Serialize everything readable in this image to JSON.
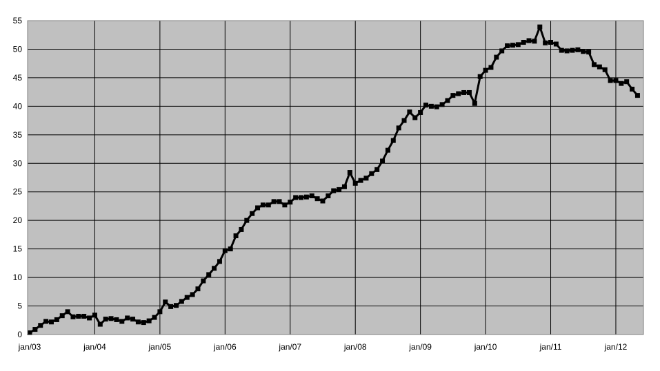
{
  "chart_data": {
    "type": "line",
    "title": "",
    "xlabel": "",
    "ylabel": "",
    "ylim": [
      0,
      55
    ],
    "yticks": [
      0,
      5,
      10,
      15,
      20,
      25,
      30,
      35,
      40,
      45,
      50,
      55
    ],
    "xtick_labels": [
      "jan/03",
      "jan/04",
      "jan/05",
      "jan/06",
      "jan/07",
      "jan/08",
      "jan/09",
      "jan/10",
      "jan/11",
      "jan/12"
    ],
    "grid": true,
    "legend": "none",
    "colors": {
      "line": "#000000",
      "plot_background": "#c0c0c0",
      "grid": "#000000"
    },
    "series": [
      {
        "x_start": "2003-01",
        "x_interval": "month",
        "values": [
          0.3,
          0.9,
          1.6,
          2.3,
          2.2,
          2.6,
          3.3,
          4.0,
          3.1,
          3.2,
          3.2,
          2.9,
          3.4,
          1.8,
          2.7,
          2.8,
          2.6,
          2.3,
          2.9,
          2.7,
          2.2,
          2.1,
          2.4,
          3.0,
          4.0,
          5.7,
          4.9,
          5.1,
          5.8,
          6.5,
          7.0,
          8.0,
          9.4,
          10.5,
          11.6,
          12.8,
          14.7,
          15.0,
          17.3,
          18.4,
          20.0,
          21.2,
          22.2,
          22.7,
          22.7,
          23.3,
          23.3,
          22.7,
          23.2,
          24.0,
          24.0,
          24.1,
          24.3,
          23.8,
          23.4,
          24.3,
          25.2,
          25.4,
          25.9,
          28.4,
          26.5,
          27.0,
          27.4,
          28.2,
          28.9,
          30.4,
          32.3,
          34.0,
          36.2,
          37.5,
          39.0,
          38.0,
          38.9,
          40.2,
          40.0,
          39.9,
          40.3,
          41.0,
          41.9,
          42.2,
          42.4,
          42.4,
          40.5,
          45.2,
          46.3,
          46.8,
          48.6,
          49.7,
          50.6,
          50.7,
          50.8,
          51.2,
          51.5,
          51.4,
          53.9,
          51.1,
          51.2,
          50.9,
          49.8,
          49.7,
          49.8,
          49.9,
          49.6,
          49.5,
          47.3,
          46.9,
          46.4,
          44.5,
          44.5,
          44.0,
          44.3,
          43.0,
          41.9
        ]
      }
    ]
  }
}
